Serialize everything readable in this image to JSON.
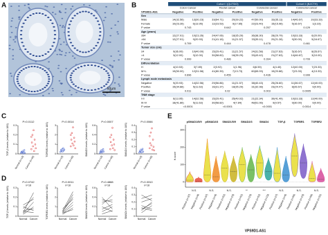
{
  "panel_labels": [
    "A",
    "B",
    "C",
    "D",
    "E"
  ],
  "image": {
    "scale_bar": "50μm"
  },
  "table": {
    "cohorts": [
      "Cohort I (QUTDO)",
      "Cohort II (BJCTH)"
    ],
    "groups": [
      "Colon Cancer",
      "Rectal cancer",
      "Colorectal cancer",
      "Colorectal cancer"
    ],
    "header": [
      "VPS9D1-AS1",
      "Negative",
      "Positive",
      "Negative",
      "Positive",
      "Negative",
      "Positive",
      "Negative",
      "Positive"
    ],
    "rows": [
      [
        "Sex"
      ],
      [
        "Male",
        "14(32.56)",
        "13(30.23)",
        "33(64.71)",
        "20(39.22)",
        "47(50.00)",
        "33(35.11)",
        "14(46.67)",
        "10(33.33)"
      ],
      [
        "Female",
        "10(23.26)",
        "6(13.95)",
        "12(23.53)",
        "9(17.65)",
        "22(23.40)",
        "15(15.96)",
        "5(16.67)",
        "1(3.33)"
      ],
      [
        "P value",
        "0.743",
        "0.642",
        "0.257",
        "0.129"
      ],
      [
        "Age (years)"
      ],
      [
        "≤64",
        "12(27.91)",
        "10(23.26)",
        "24(47.06)",
        "18(35.29)",
        "36(38.30)",
        "28(29.79)",
        "10(33.33)",
        "6(20.00)"
      ],
      [
        ">64",
        "12(27.91)",
        "9(20.93)",
        "21(41.18)",
        "11(21.57)",
        "33(35.11)",
        "20(21.28)",
        "9(30.00)",
        "5(16.67)"
      ],
      [
        "P value",
        "0.709",
        "0.444",
        "0.478",
        "0.461"
      ],
      [
        "Tumor size (cm)"
      ],
      [
        "≤4",
        "9(36.00)",
        "10(40.00)",
        "15(29.41)",
        "11(21.57)",
        "24(31.58)",
        "21(27.63)",
        "5(16.67)",
        "8(26.67)"
      ],
      [
        ">4",
        "3(12.00)",
        "3(12.00)",
        "30(58.82)",
        "18(35.29)",
        "33(43.42)",
        "21(27.63)",
        "14(46.67)",
        "3(10.00)"
      ],
      [
        "P value",
        "0.999",
        "0.486",
        "0.394",
        "0.709"
      ],
      [
        "Differentiation"
      ],
      [
        "H",
        "4(10.53)",
        "3(7.89)",
        "2(3.92)",
        "1(1.96)",
        "6(6.59)",
        "4(4.40)",
        "12(40.00)",
        "7(23.33)"
      ],
      [
        "M+L",
        "19(50.00)",
        "12(31.58)",
        "41(80.39)",
        "7(13.73)",
        "60(65.93)",
        "19(20.88)",
        "7(23.33)",
        "4(13.33)"
      ],
      [
        "P value",
        "0.696",
        "0.455",
        "0.436",
        "0.999"
      ],
      [
        "Lymph node metastasis"
      ],
      [
        "Negative",
        "9(20.93)",
        "14(32.56)",
        "29(56.86)",
        "11(21.57)",
        "38(40.43)",
        "25(26.60)",
        "11(36.67)",
        "12(40.00)"
      ],
      [
        "Positive",
        "15(34.88)",
        "5(11.63)",
        "16(31.37)",
        "18(35.29)",
        "31(32.98)",
        "23(24.47)",
        "8(26.67)",
        "0(0.00)"
      ],
      [
        "P value",
        "0.011",
        "0.02",
        "0.003",
        "0.0005"
      ],
      [
        "TNM stage"
      ],
      [
        "I-II",
        "6(13.95)",
        "14(32.56)",
        "15(29.41)",
        "25(49.02)",
        "21(22.34)",
        "39(41.49)",
        "10(33.33)",
        "12(40.00)"
      ],
      [
        "III-IV",
        "18(41.86)",
        "5(11.63)",
        "30(58.82)",
        "4(7.84)",
        "48(51.06)",
        "9(9.57)",
        "9(30.00)",
        "0(0.00)"
      ],
      [
        "P value",
        "<0.0001",
        "<0.0001",
        "<0.0001",
        "0.0014"
      ]
    ]
  },
  "chart_data": [
    {
      "type": "dot",
      "ylabel": "TGF-β levels (relative to 18S)",
      "annotation": "P=0.0112",
      "categories": [
        "Normal (n=18)",
        "Cancer (n=48)"
      ],
      "groups": [
        {
          "color": "#2b4fc7",
          "values": [
            0.01,
            0.02,
            0.015,
            0.03,
            0.005,
            0.02,
            0.04,
            0.01
          ]
        },
        {
          "color": "#d62728",
          "values": [
            0.05,
            0.12,
            0.2,
            0.08,
            0.25,
            0.03,
            0.15,
            0.1,
            0.06,
            0.18
          ]
        }
      ],
      "ylim": [
        0,
        0.3
      ],
      "yticks": [
        0,
        0.1,
        0.2,
        0.3
      ]
    },
    {
      "type": "dot",
      "ylabel": "TGFBR1 levels (relative to 18S)",
      "annotation": "P=0.0014",
      "categories": [
        "Normal (n=18)",
        "Cancer (n=48)"
      ],
      "groups": [
        {
          "color": "#2b4fc7",
          "values": [
            0.2,
            0.4,
            0.3,
            0.5,
            0.25,
            0.6,
            0.35,
            0.45
          ]
        },
        {
          "color": "#d62728",
          "values": [
            0.8,
            1.5,
            2.2,
            1.1,
            2.8,
            0.9,
            1.7,
            1.3,
            0.6,
            2
          ]
        }
      ],
      "ylim": [
        0,
        3
      ],
      "yticks": [
        0,
        1,
        2,
        3
      ]
    },
    {
      "type": "dot",
      "ylabel": "SMAD3 levels (relative to 18S)",
      "annotation": "P=0.0007",
      "categories": [
        "Normal (n=18)",
        "Cancer (n=48)"
      ],
      "groups": [
        {
          "color": "#2b4fc7",
          "values": [
            0.02,
            0.05,
            0.04,
            0.08,
            0.03,
            0.06,
            0.1,
            0.05
          ]
        },
        {
          "color": "#d62728",
          "values": [
            0.1,
            0.25,
            0.4,
            0.18,
            0.55,
            0.12,
            0.3,
            0.2,
            0.08,
            0.35
          ]
        }
      ],
      "ylim": [
        0,
        0.6
      ],
      "yticks": [
        0,
        0.2,
        0.4,
        0.6
      ]
    },
    {
      "type": "dot",
      "ylabel": "SMAD4 levels (relative to 18S)",
      "annotation": "P=0.0066",
      "categories": [
        "Normal (n=18)",
        "Cancer (n=48)"
      ],
      "groups": [
        {
          "color": "#2b4fc7",
          "values": [
            0.02,
            0.04,
            0.03,
            0.06,
            0.02,
            0.05,
            0.07,
            0.03
          ]
        },
        {
          "color": "#d62728",
          "values": [
            0.08,
            0.15,
            0.3,
            0.12,
            0.36,
            0.06,
            0.2,
            0.1,
            0.05,
            0.25
          ]
        }
      ],
      "ylim": [
        0,
        0.4
      ],
      "yticks": [
        0,
        0.1,
        0.2,
        0.3,
        0.4
      ]
    },
    {
      "type": "paired",
      "ylabel": "TGF-β levels (relative to 18S)",
      "annotation": "P=0.0742",
      "n_label": "n=18",
      "categories": [
        "Normal",
        "Cancer"
      ],
      "normal": [
        0.02,
        0.05,
        0.08,
        0.03,
        0.1,
        0.04,
        0.06,
        0.12
      ],
      "cancer": [
        0.1,
        0.04,
        0.2,
        0.15,
        0.06,
        0.25,
        0.08,
        0.18
      ],
      "color": "#333333",
      "ylim": [
        0,
        0.3
      ],
      "yticks": [
        0,
        0.1,
        0.2,
        0.3
      ]
    },
    {
      "type": "paired",
      "ylabel": "TGFBR1 levels (relative to 18S)",
      "annotation": "P=0.0011",
      "n_label": "n=18",
      "categories": [
        "Normal",
        "Cancer"
      ],
      "normal": [
        0.3,
        0.5,
        0.2,
        0.6,
        0.4,
        0.8,
        0.35,
        0.45
      ],
      "cancer": [
        1.2,
        2,
        0.9,
        2.6,
        1.5,
        1.8,
        0.7,
        2.3
      ],
      "color": "#333333",
      "ylim": [
        0,
        3
      ],
      "yticks": [
        0,
        1,
        2,
        3
      ]
    },
    {
      "type": "paired",
      "ylabel": "SMAD3 levels (relative to 18S)",
      "annotation": "P=0.4888",
      "n_label": "n=18",
      "categories": [
        "Normal",
        "Cancer"
      ],
      "normal": [
        0.1,
        0.2,
        0.35,
        0.15,
        0.25,
        0.4,
        0.05,
        0.3
      ],
      "cancer": [
        0.2,
        0.1,
        0.3,
        0.25,
        0.45,
        0.15,
        0.12,
        0.35
      ],
      "color": "#333333",
      "ylim": [
        0,
        0.6
      ],
      "yticks": [
        0,
        0.2,
        0.4,
        0.6
      ]
    },
    {
      "type": "paired",
      "ylabel": "SMAD4 levels (relative to 18S)",
      "annotation": "P=0.3310",
      "n_label": "n=18",
      "categories": [
        "Normal",
        "Cancer"
      ],
      "normal": [
        0.05,
        0.12,
        0.2,
        0.08,
        0.15,
        0.25,
        0.1,
        0.3
      ],
      "cancer": [
        0.15,
        0.08,
        0.25,
        0.2,
        0.1,
        0.3,
        0.18,
        0.22
      ],
      "color": "#333333",
      "ylim": [
        0,
        0.4
      ],
      "yticks": [
        0,
        0.1,
        0.2,
        0.3,
        0.4
      ]
    },
    {
      "type": "violin",
      "ylabel": "H-score",
      "xlabel": "VPS9D1-AS1",
      "groups": [
        "pSMAD1/5/9",
        "pSMAD2/3",
        "SMAD1/5/9",
        "SMAD2/3",
        "SMAD4",
        "TGF-β",
        "TGFBR1",
        "TGFBR2"
      ],
      "annotations": [
        "N.S.",
        "N.S.",
        "N.S.",
        "**",
        "***",
        "N.S.",
        "N.S.",
        "N.S."
      ],
      "categories": [
        "Positive (n=37)",
        "Negative (n=8)",
        "Positive (n=37)",
        "Negative (n=8)",
        "Positive (n=52)",
        "Negative (n=23)",
        "Positive (n=52)",
        "Negative (n=23)",
        "Positive (n=52)",
        "Negative (n=23)",
        "Positive (n=27)",
        "Negative (n=8)",
        "Positive (n=56)",
        "Negative (n=23)",
        "Positive (n=56)",
        "Negative (n=31)"
      ],
      "colors": [
        "#e6dc2e",
        "#e84a3a",
        "#e6dc2e",
        "#f08a24",
        "#e6dc2e",
        "#c9b21f",
        "#e6dc2e",
        "#63b54a",
        "#e6dc2e",
        "#2aa59a",
        "#e6dc2e",
        "#3a8fd0",
        "#e6dc2e",
        "#7a5bc7",
        "#e6dc2e",
        "#d64a9a"
      ],
      "min": [
        0,
        0,
        0,
        0,
        0,
        0,
        0,
        0,
        20,
        10,
        0,
        0,
        30,
        20,
        0,
        0
      ],
      "median": [
        10,
        5,
        40,
        30,
        80,
        60,
        100,
        70,
        110,
        60,
        50,
        40,
        150,
        110,
        20,
        15
      ],
      "max": [
        60,
        30,
        250,
        150,
        180,
        150,
        200,
        160,
        210,
        140,
        200,
        150,
        280,
        220,
        120,
        80
      ],
      "ylim": [
        -30,
        330
      ],
      "yticks": [
        0,
        100,
        200,
        300
      ]
    }
  ]
}
